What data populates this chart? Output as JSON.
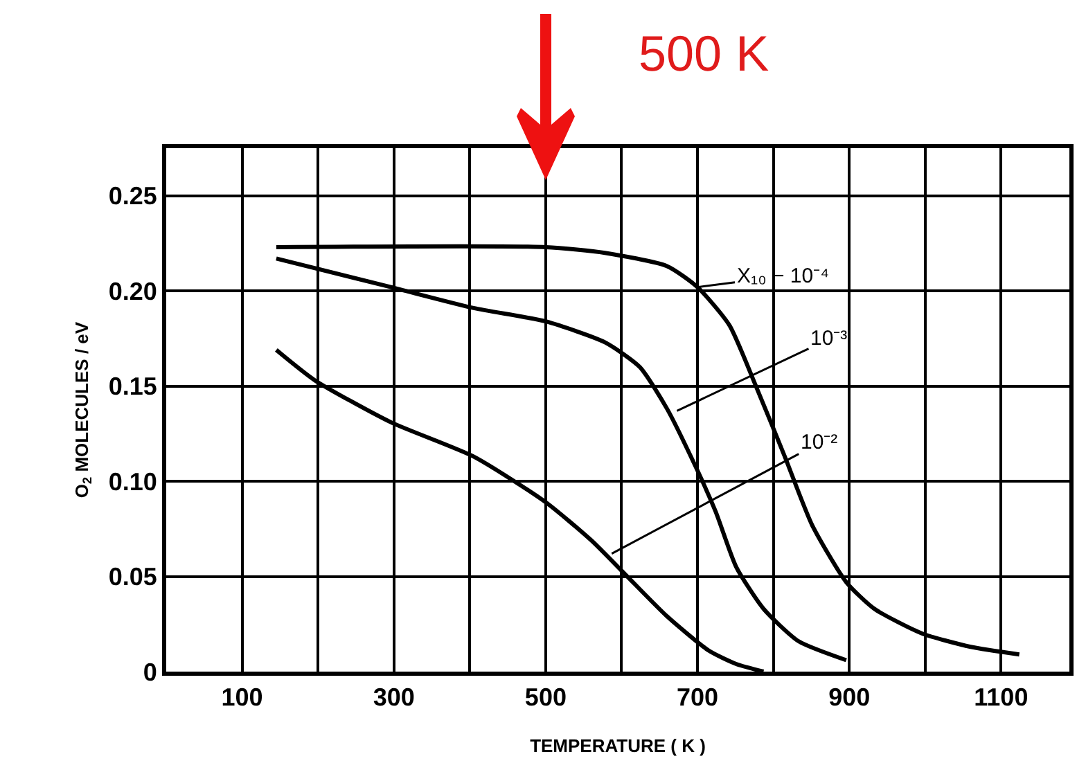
{
  "chart_data": {
    "type": "line",
    "xlabel": "TEMPERATURE ( K )",
    "ylabel": "O$_{2}$ MOLECULES / eV",
    "xlim": [
      0,
      1190
    ],
    "ylim": [
      0,
      0.275
    ],
    "xticks": [
      {
        "value": 100,
        "label": "100"
      },
      {
        "value": 200,
        "label": null
      },
      {
        "value": 300,
        "label": "300"
      },
      {
        "value": 400,
        "label": null
      },
      {
        "value": 500,
        "label": "500"
      },
      {
        "value": 600,
        "label": null
      },
      {
        "value": 700,
        "label": "700"
      },
      {
        "value": 800,
        "label": null
      },
      {
        "value": 900,
        "label": "900"
      },
      {
        "value": 1000,
        "label": null
      },
      {
        "value": 1100,
        "label": "1100"
      }
    ],
    "yticks": [
      0,
      0.05,
      {
        "value": 0.1,
        "label": "0.10"
      },
      0.15,
      {
        "value": 0.2,
        "label": "0.20"
      },
      0.25
    ],
    "grid": true,
    "series": [
      {
        "color": "#000000",
        "x": [
          145,
          500,
          578,
          660,
          700,
          742,
          778,
          815,
          851,
          896,
          933,
          996,
          1060,
          1124
        ],
        "values": [
          0.223,
          0.223,
          0.22,
          0.213,
          0.202,
          0.182,
          0.149,
          0.113,
          0.077,
          0.047,
          0.033,
          0.02,
          0.013,
          0.009
        ]
      },
      {
        "color": "#000000",
        "x": [
          145,
          296,
          405,
          500,
          578,
          624,
          660,
          696,
          724,
          751,
          787,
          833,
          896
        ],
        "values": [
          0.217,
          0.202,
          0.191,
          0.184,
          0.173,
          0.16,
          0.138,
          0.109,
          0.084,
          0.055,
          0.033,
          0.016,
          0.006
        ]
      },
      {
        "color": "#000000",
        "x": [
          145,
          196,
          296,
          405,
          500,
          560,
          605,
          660,
          715,
          751,
          787
        ],
        "values": [
          0.169,
          0.153,
          0.131,
          0.113,
          0.089,
          0.069,
          0.051,
          0.029,
          0.011,
          0.004,
          0
        ]
      }
    ],
    "annotations": [
      {
        "text": "X₁₀ − 10⁻⁴",
        "x": 700,
        "y": 0.202
      },
      {
        "text": "10⁻³",
        "x": 673,
        "y": 0.137
      },
      {
        "text": "10⁻²",
        "x": 587,
        "y": 0.062
      },
      "500 K"
    ]
  }
}
